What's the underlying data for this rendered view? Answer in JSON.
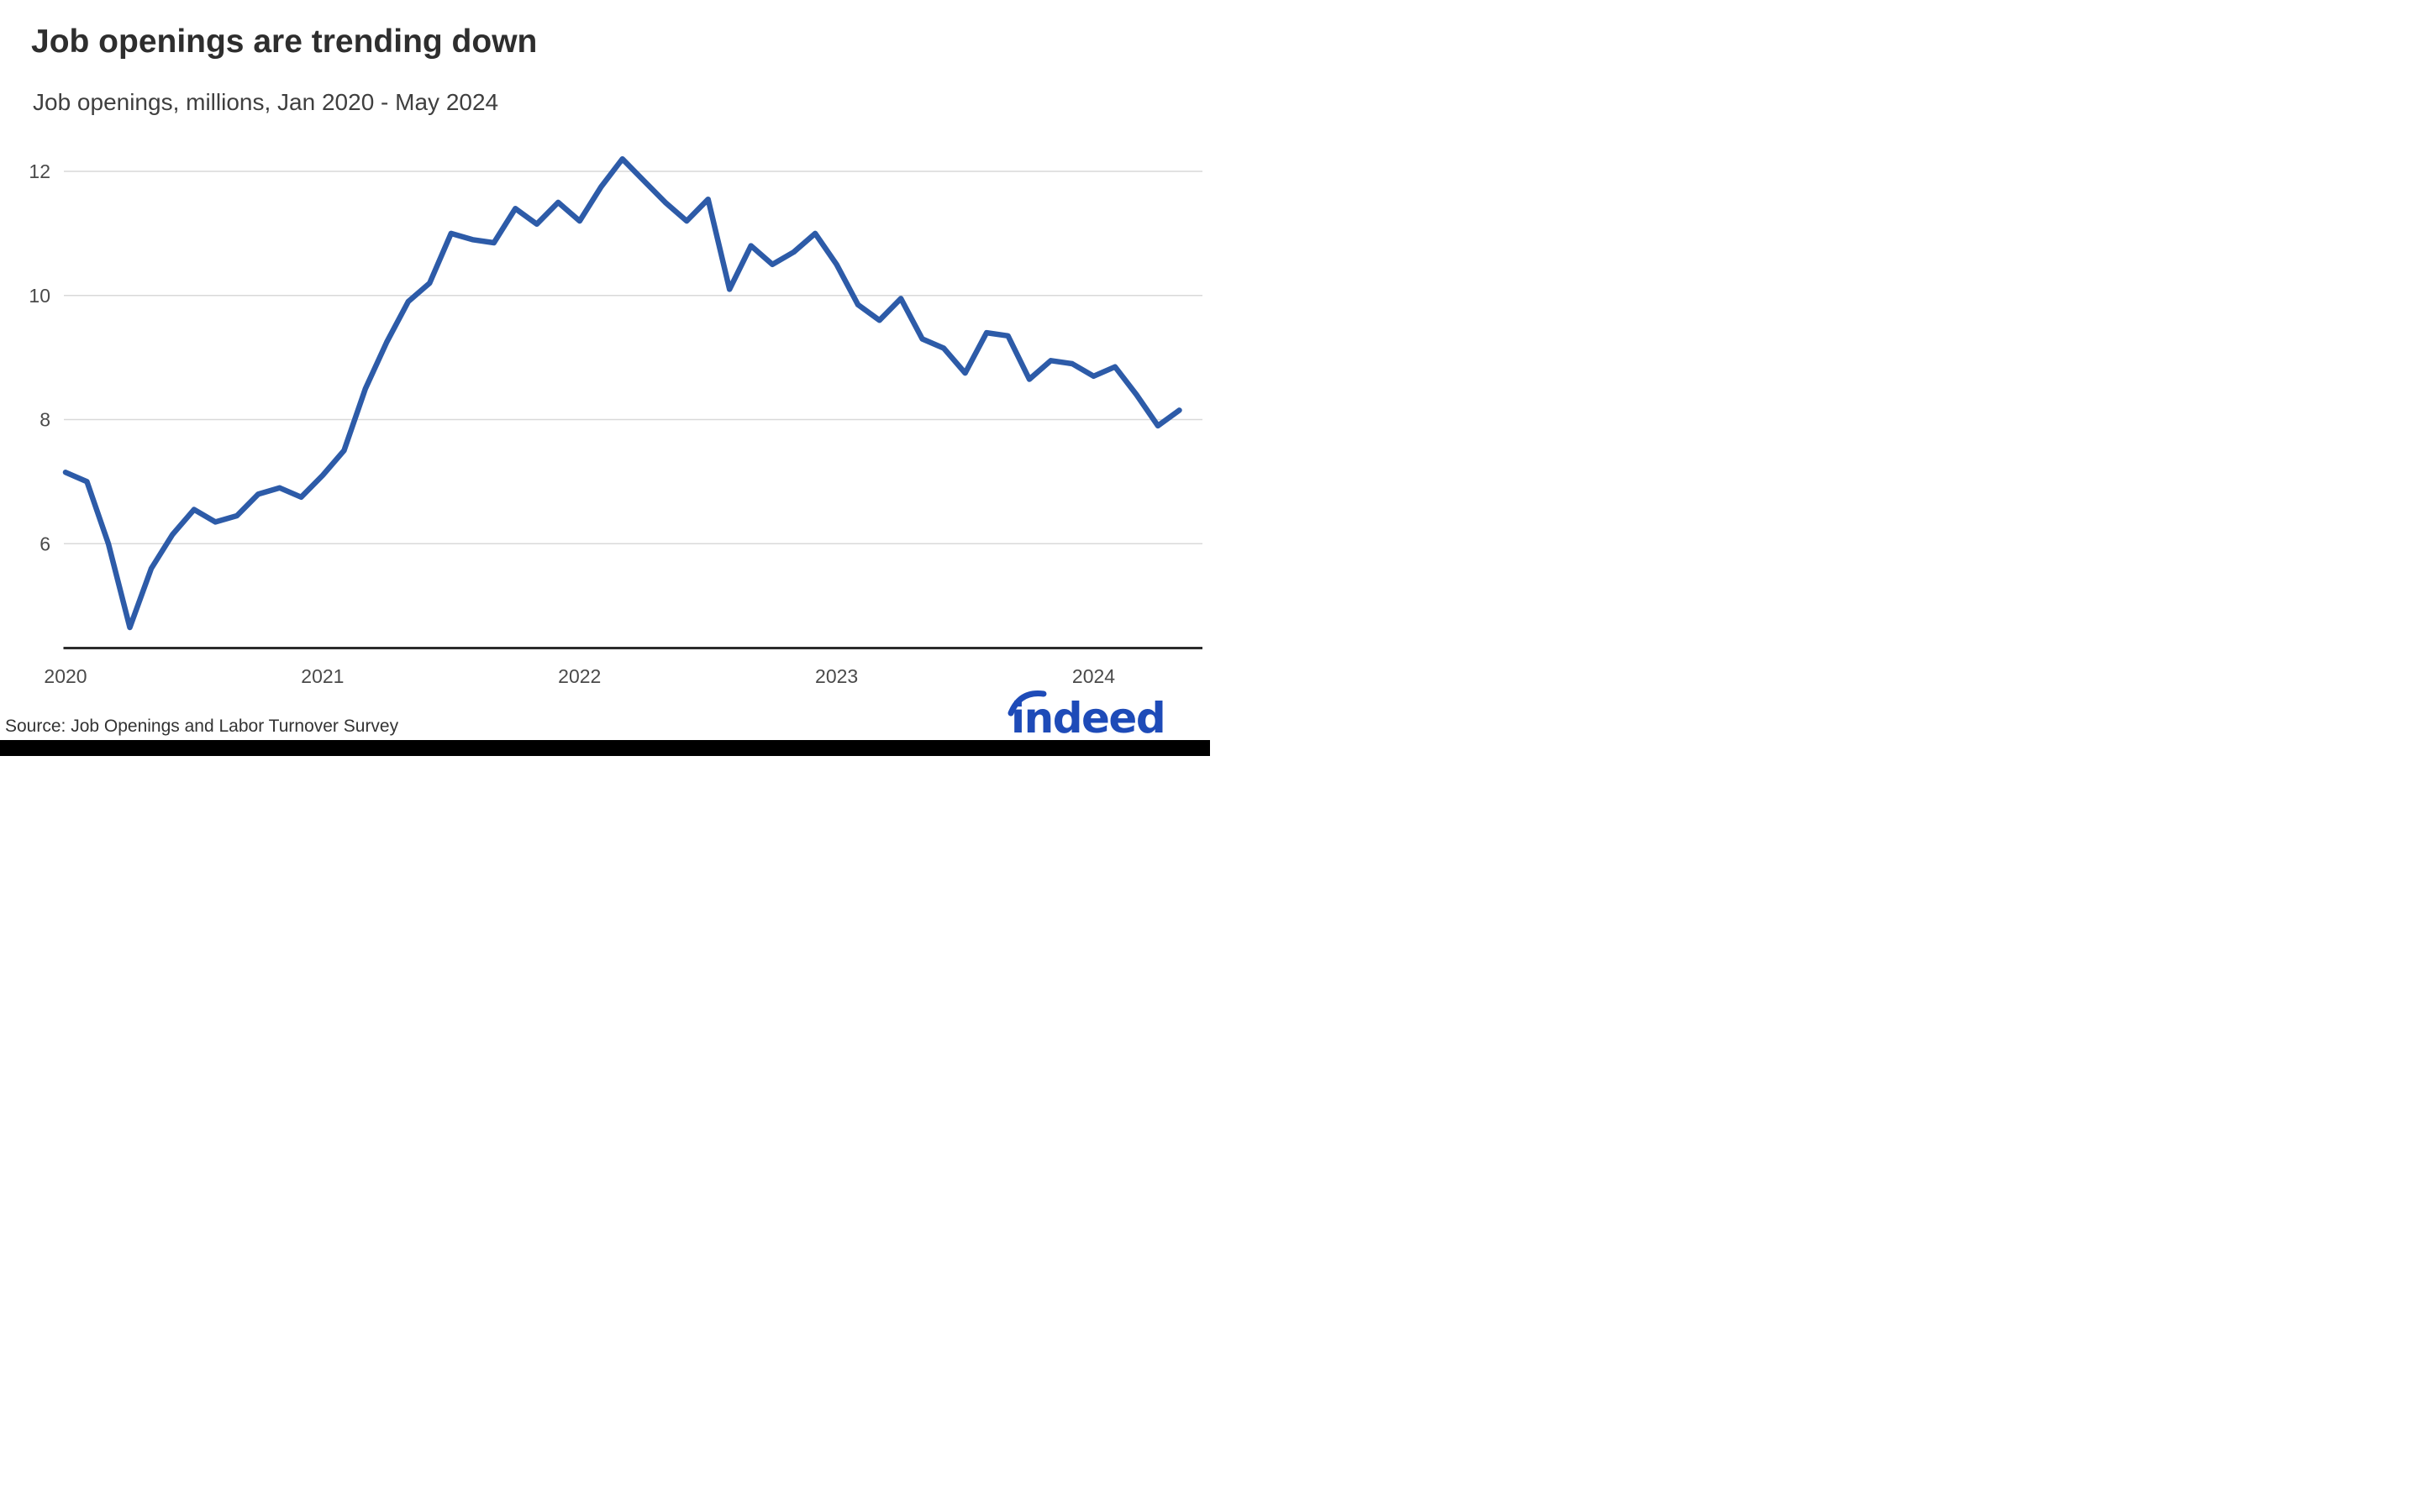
{
  "header": {
    "title": "Job openings are trending down",
    "subtitle": "Job openings, millions, Jan 2020 - May 2024"
  },
  "chart_data": {
    "type": "line",
    "title": "Job openings are trending down",
    "subtitle": "Job openings, millions, Jan 2020 - May 2024",
    "series_name": "Job openings (millions)",
    "frequency": "monthly",
    "x_start": "Jan 2020",
    "x_end": "May 2024",
    "months": [
      "Jan 2020",
      "Feb 2020",
      "Mar 2020",
      "Apr 2020",
      "May 2020",
      "Jun 2020",
      "Jul 2020",
      "Aug 2020",
      "Sep 2020",
      "Oct 2020",
      "Nov 2020",
      "Dec 2020",
      "Jan 2021",
      "Feb 2021",
      "Mar 2021",
      "Apr 2021",
      "May 2021",
      "Jun 2021",
      "Jul 2021",
      "Aug 2021",
      "Sep 2021",
      "Oct 2021",
      "Nov 2021",
      "Dec 2021",
      "Jan 2022",
      "Feb 2022",
      "Mar 2022",
      "Apr 2022",
      "May 2022",
      "Jun 2022",
      "Jul 2022",
      "Aug 2022",
      "Sep 2022",
      "Oct 2022",
      "Nov 2022",
      "Dec 2022",
      "Jan 2023",
      "Feb 2023",
      "Mar 2023",
      "Apr 2023",
      "May 2023",
      "Jun 2023",
      "Jul 2023",
      "Aug 2023",
      "Sep 2023",
      "Oct 2023",
      "Nov 2023",
      "Dec 2023",
      "Jan 2024",
      "Feb 2024",
      "Mar 2024",
      "Apr 2024",
      "May 2024"
    ],
    "values": [
      7.15,
      7.0,
      6.0,
      4.65,
      5.6,
      6.15,
      6.55,
      6.35,
      6.45,
      6.8,
      6.9,
      6.75,
      7.1,
      7.5,
      8.5,
      9.25,
      9.9,
      10.2,
      11.0,
      10.9,
      10.85,
      11.4,
      11.15,
      11.5,
      11.2,
      11.75,
      12.2,
      11.85,
      11.5,
      11.2,
      11.55,
      10.1,
      10.8,
      10.5,
      10.7,
      11.0,
      10.5,
      9.85,
      9.6,
      9.95,
      9.3,
      9.15,
      8.75,
      9.4,
      9.35,
      8.65,
      8.95,
      8.9,
      8.7,
      8.85,
      8.4,
      7.9,
      8.15
    ],
    "x_tick_labels": [
      "2020",
      "2021",
      "2022",
      "2023",
      "2024"
    ],
    "y_ticks": [
      12,
      10,
      8,
      6
    ],
    "ylim": [
      4.3,
      12.4
    ],
    "grid": true,
    "legend": "none",
    "line_color": "#2d5ba8",
    "gridline_color": "#d9d9d9",
    "axis_color": "#2b2b2b",
    "tick_label_color": "#4a4a4a"
  },
  "footer": {
    "source": "Source: Job Openings and Labor Turnover Survey",
    "logo_text": "indeed",
    "logo_color": "#1e4bb8"
  }
}
